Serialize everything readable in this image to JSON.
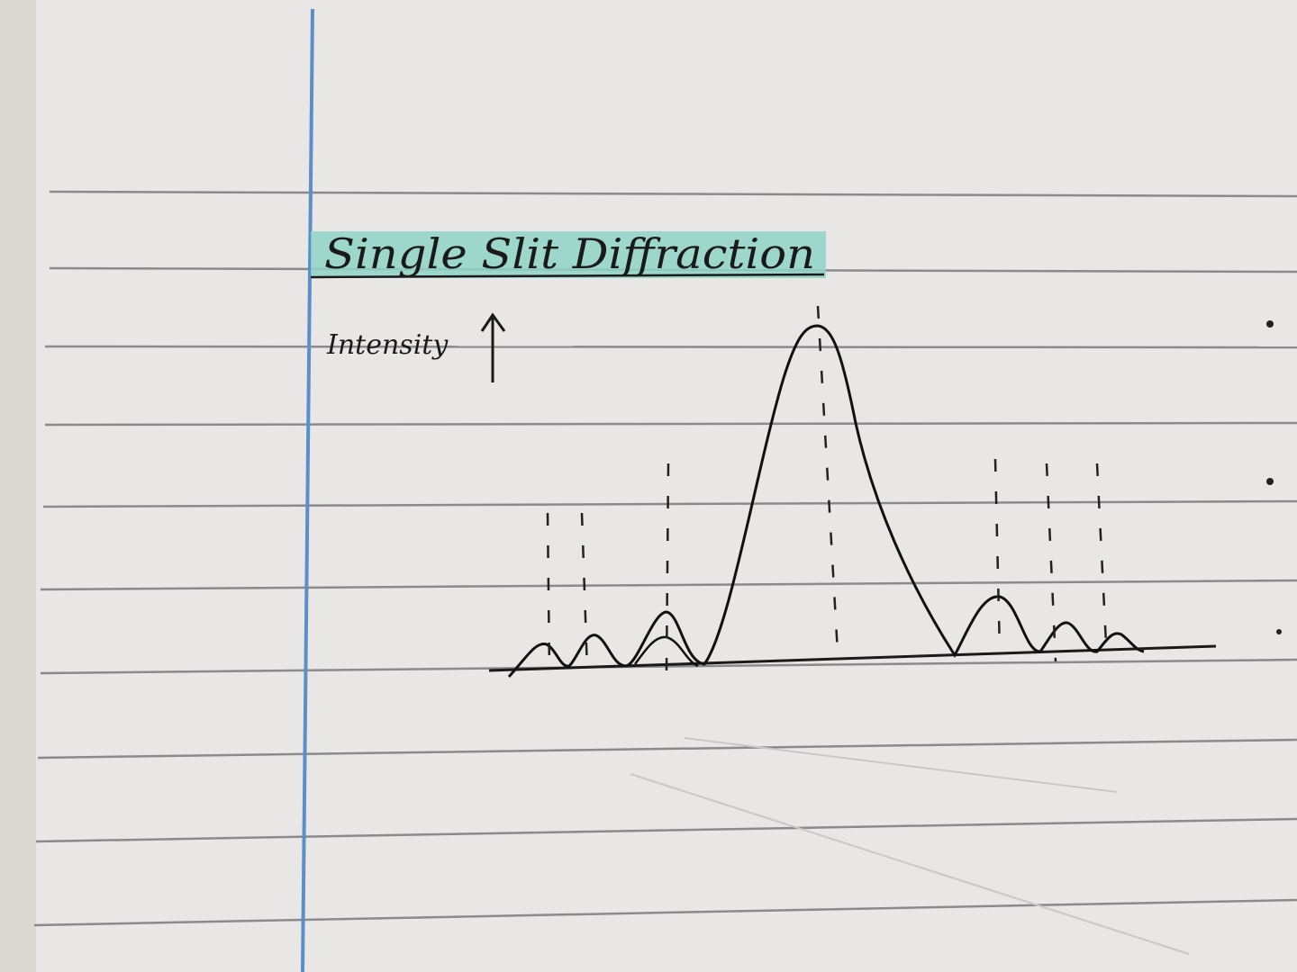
{
  "title": "Single Slit Diffraction",
  "axis_label": "Intensity"
}
